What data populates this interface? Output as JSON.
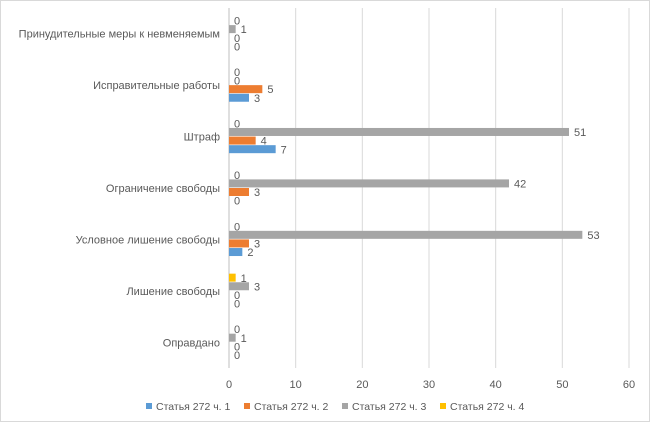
{
  "chart_data": {
    "type": "bar",
    "orientation": "horizontal",
    "categories": [
      "Оправдано",
      "Лишение свободы",
      "Условное лишение свободы",
      "Ограничение свободы",
      "Штраф",
      "Исправительные работы",
      "Принудительные меры к невменяемым"
    ],
    "series": [
      {
        "name": "Статья 272 ч. 1",
        "color": "#5b9bd5",
        "values": [
          0,
          0,
          2,
          0,
          7,
          3,
          0
        ]
      },
      {
        "name": "Статья 272 ч. 2",
        "color": "#ed7d31",
        "values": [
          0,
          0,
          3,
          3,
          4,
          5,
          0
        ]
      },
      {
        "name": "Статья 272 ч. 3",
        "color": "#a5a5a5",
        "values": [
          1,
          3,
          53,
          42,
          51,
          0,
          1
        ]
      },
      {
        "name": "Статья 272 ч. 4",
        "color": "#ffc000",
        "values": [
          0,
          1,
          0,
          0,
          0,
          0,
          0
        ]
      }
    ],
    "xlim": [
      0,
      60
    ],
    "xticks": [
      "0",
      "10",
      "20",
      "30",
      "40",
      "50",
      "60"
    ],
    "grid": true,
    "data_labels": true,
    "legend": "bottom",
    "title": "",
    "xlabel": "",
    "ylabel": ""
  }
}
